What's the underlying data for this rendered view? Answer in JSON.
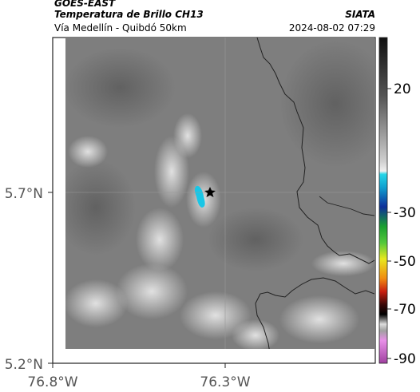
{
  "header": {
    "satellite": "GOES-EAST",
    "product": "Temperatura de Brillo CH13",
    "organization": "SIATA",
    "region": "Vía Medellín - Quibdó 50km",
    "timestamp": "2024-08-02 07:29"
  },
  "map": {
    "lat_labels": [
      "5.7°N",
      "5.2°N"
    ],
    "lon_labels": [
      "76.8°W",
      "76.3°W"
    ],
    "marker_icon": "star-icon"
  },
  "colorbar": {
    "labels": [
      "20",
      "-30",
      "-50",
      "-70",
      "-90"
    ]
  },
  "colors": {
    "cold_cloud": "#19c6e6",
    "border_line": "#222222",
    "background_gray": "#7e7e7e"
  }
}
